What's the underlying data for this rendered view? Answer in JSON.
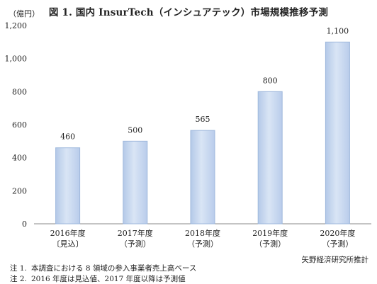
{
  "title": "図 1.  国内 InsurTech（インシュアテック）市場規模推移予測",
  "source": "矢野経済研究所推計",
  "notes": [
    {
      "label": "注 1.",
      "text": "本調査における 8 領域の参入事業者売上高ベース"
    },
    {
      "label": "注 2.",
      "text": "2016 年度は見込値、2017 年度以降は予測値"
    }
  ],
  "chart_data": {
    "type": "bar",
    "title": "図 1.  国内 InsurTech（インシュアテック）市場規模推移予測",
    "ylabel": "（億円）",
    "ylim": [
      0,
      1200
    ],
    "yticks": [
      0,
      200,
      400,
      600,
      800,
      1000,
      1200
    ],
    "ytick_labels": [
      "0",
      "200",
      "400",
      "600",
      "800",
      "1,000",
      "1,200"
    ],
    "categories": [
      "2016年度",
      "2017年度",
      "2018年度",
      "2019年度",
      "2020年度"
    ],
    "category_sublabels": [
      "〔見込〕",
      "（予測）",
      "（予測）",
      "（予測）",
      "（予測）"
    ],
    "values": [
      460,
      500,
      565,
      800,
      1100
    ],
    "value_labels": [
      "460",
      "500",
      "565",
      "800",
      "1,100"
    ],
    "bar_color": "#c7d7ee",
    "bar_edge_color": "#9fb8dc",
    "grid": false
  }
}
